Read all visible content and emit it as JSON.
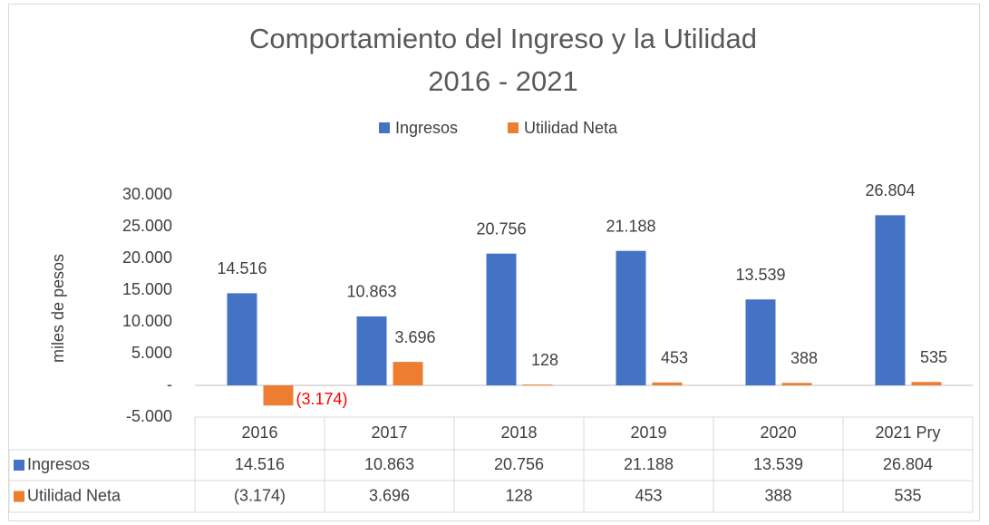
{
  "chart_data": {
    "type": "bar",
    "title": "Comportamiento del Ingreso y la Utilidad",
    "subtitle": "2016 - 2021",
    "y_label": "miles de pesos",
    "categories": [
      "2016",
      "2017",
      "2018",
      "2019",
      "2020",
      "2021 Pry"
    ],
    "series": [
      {
        "name": "Ingresos",
        "color": "#4472c4",
        "values": [
          14516,
          10863,
          20756,
          21188,
          13539,
          26804
        ],
        "value_labels": [
          "14.516",
          "10.863",
          "20.756",
          "21.188",
          "13.539",
          "26.804"
        ]
      },
      {
        "name": "Utilidad Neta",
        "color": "#ed7d31",
        "values": [
          -3174,
          3696,
          128,
          453,
          388,
          535
        ],
        "value_labels": [
          "(3.174)",
          "3.696",
          "128",
          "453",
          "388",
          "535"
        ]
      }
    ],
    "ylim": [
      -5000,
      30000
    ],
    "yticks": [
      {
        "value": -5000,
        "label": "-5.000"
      },
      {
        "value": 0,
        "label": "-"
      },
      {
        "value": 5000,
        "label": "5.000"
      },
      {
        "value": 10000,
        "label": "10.000"
      },
      {
        "value": 15000,
        "label": "15.000"
      },
      {
        "value": 20000,
        "label": "20.000"
      },
      {
        "value": 25000,
        "label": "25.000"
      },
      {
        "value": 30000,
        "label": "30.000"
      }
    ],
    "legend": "top",
    "data_table": true
  }
}
